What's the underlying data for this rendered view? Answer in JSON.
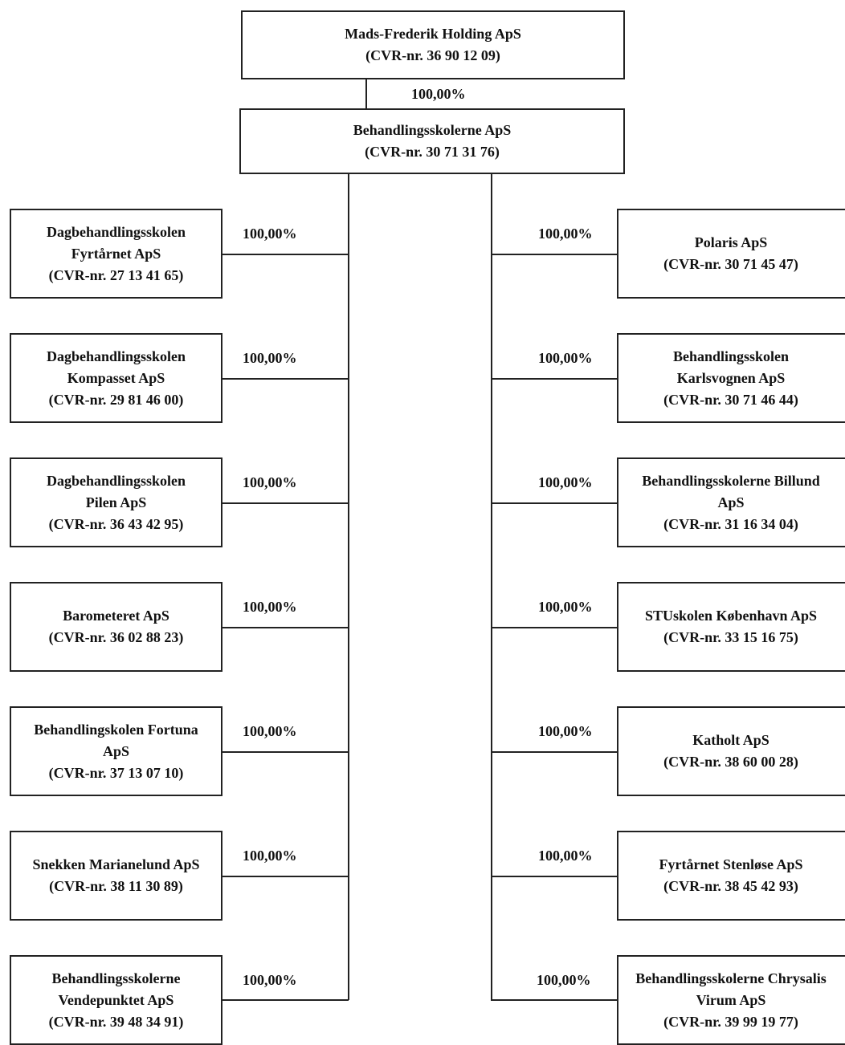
{
  "top": {
    "name": "Mads-Frederik Holding ApS",
    "cvr": "(CVR-nr. 36 90 12 09)",
    "ownership": "100,00%"
  },
  "main": {
    "name": "Behandlingsskolerne ApS",
    "cvr": "(CVR-nr. 30 71 31 76)"
  },
  "left": [
    {
      "lines": [
        "Dagbehandlingsskolen",
        "Fyrtårnet ApS",
        "(CVR-nr. 27 13 41 65)"
      ],
      "ownership": "100,00%"
    },
    {
      "lines": [
        "Dagbehandlingsskolen",
        "Kompasset ApS",
        "(CVR-nr. 29 81 46 00)"
      ],
      "ownership": "100,00%"
    },
    {
      "lines": [
        "Dagbehandlingsskolen",
        "Pilen ApS",
        "(CVR-nr. 36 43 42 95)"
      ],
      "ownership": "100,00%"
    },
    {
      "lines": [
        "Barometeret ApS",
        "(CVR-nr. 36 02 88 23)"
      ],
      "ownership": "100,00%"
    },
    {
      "lines": [
        "Behandlingskolen Fortuna",
        "ApS",
        "(CVR-nr. 37 13 07 10)"
      ],
      "ownership": "100,00%"
    },
    {
      "lines": [
        "Snekken Marianelund ApS",
        "(CVR-nr. 38 11 30 89)"
      ],
      "ownership": "100,00%"
    },
    {
      "lines": [
        "Behandlingsskolerne",
        "Vendepunktet ApS",
        "(CVR-nr. 39 48 34 91)"
      ],
      "ownership": "100,00%"
    }
  ],
  "right": [
    {
      "lines": [
        "Polaris ApS",
        "(CVR-nr. 30 71 45 47)"
      ],
      "ownership": "100,00%"
    },
    {
      "lines": [
        "Behandlingsskolen",
        "Karlsvognen ApS",
        "(CVR-nr. 30 71 46 44)"
      ],
      "ownership": "100,00%"
    },
    {
      "lines": [
        "Behandlingsskolerne Billund",
        "ApS",
        "(CVR-nr. 31 16 34 04)"
      ],
      "ownership": "100,00%"
    },
    {
      "lines": [
        "STUskolen København ApS",
        "(CVR-nr. 33 15 16 75)"
      ],
      "ownership": "100,00%"
    },
    {
      "lines": [
        "Katholt ApS",
        "(CVR-nr. 38 60 00 28)"
      ],
      "ownership": "100,00%"
    },
    {
      "lines": [
        "Fyrtårnet Stenløse ApS",
        "(CVR-nr. 38 45 42 93)"
      ],
      "ownership": "100,00%"
    },
    {
      "lines": [
        "Behandlingsskolerne Chrysalis",
        "Virum ApS",
        "(CVR-nr. 39 99 19 77)"
      ],
      "ownership": "100,00%"
    }
  ]
}
